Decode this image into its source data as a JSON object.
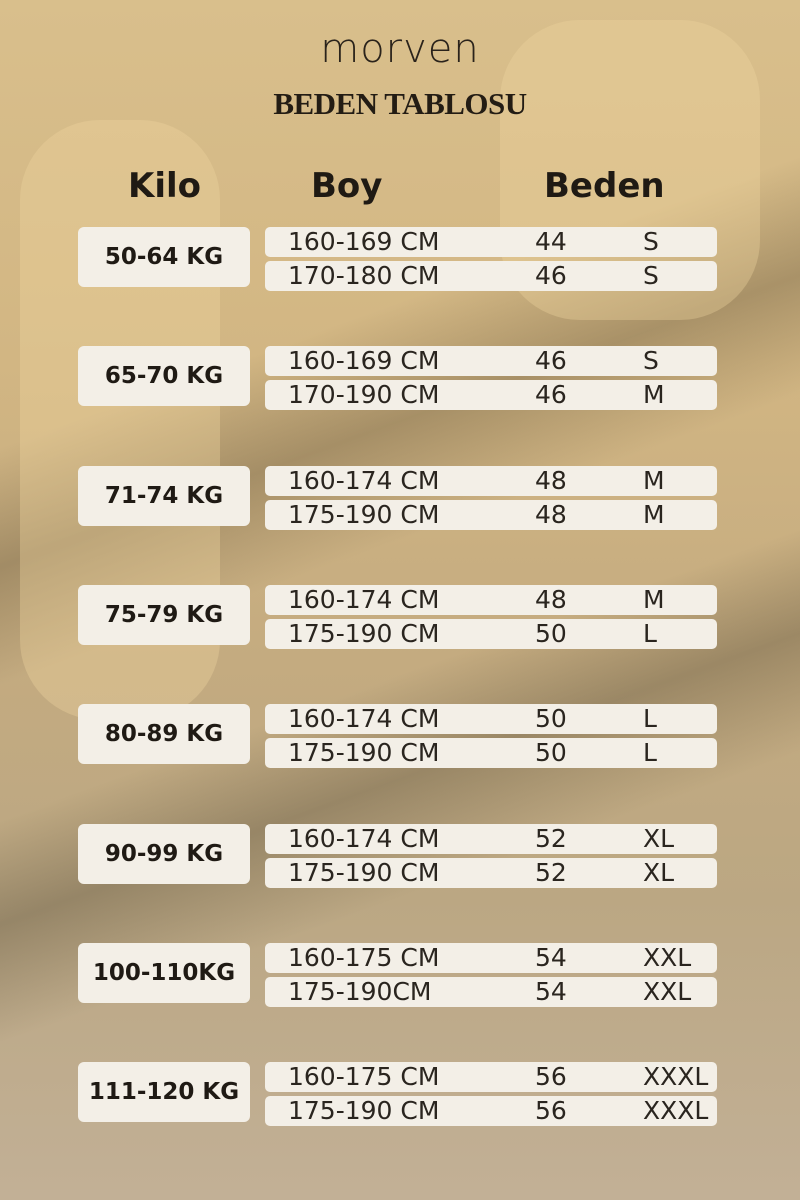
{
  "brand": "morven",
  "title": "BEDEN TABLOSU",
  "headers": {
    "kilo": "Kilo",
    "boy": "Boy",
    "beden": "Beden"
  },
  "groups": [
    {
      "kilo": "50-64 KG",
      "rows": [
        [
          "160-169 CM",
          "44",
          "S"
        ],
        [
          "170-180 CM",
          "46",
          "S"
        ]
      ]
    },
    {
      "kilo": "65-70 KG",
      "rows": [
        [
          "160-169 CM",
          "46",
          "S"
        ],
        [
          "170-190 CM",
          "46",
          "M"
        ]
      ]
    },
    {
      "kilo": "71-74 KG",
      "rows": [
        [
          "160-174 CM",
          "48",
          "M"
        ],
        [
          "175-190 CM",
          "48",
          "M"
        ]
      ]
    },
    {
      "kilo": "75-79 KG",
      "rows": [
        [
          "160-174 CM",
          "48",
          "M"
        ],
        [
          "175-190 CM",
          "50",
          "L"
        ]
      ]
    },
    {
      "kilo": "80-89 KG",
      "rows": [
        [
          "160-174 CM",
          "50",
          "L"
        ],
        [
          "175-190 CM",
          "50",
          "L"
        ]
      ]
    },
    {
      "kilo": "90-99 KG",
      "rows": [
        [
          "160-174 CM",
          "52",
          "XL"
        ],
        [
          "175-190 CM",
          "52",
          "XL"
        ]
      ]
    },
    {
      "kilo": "100-110KG",
      "rows": [
        [
          "160-175 CM",
          "54",
          "XXL"
        ],
        [
          "175-190CM",
          "54",
          "XXL"
        ]
      ]
    },
    {
      "kilo": "111-120 KG",
      "rows": [
        [
          "160-175 CM",
          "56",
          "XXXL"
        ],
        [
          "175-190 CM",
          "56",
          "XXXL"
        ]
      ]
    }
  ]
}
